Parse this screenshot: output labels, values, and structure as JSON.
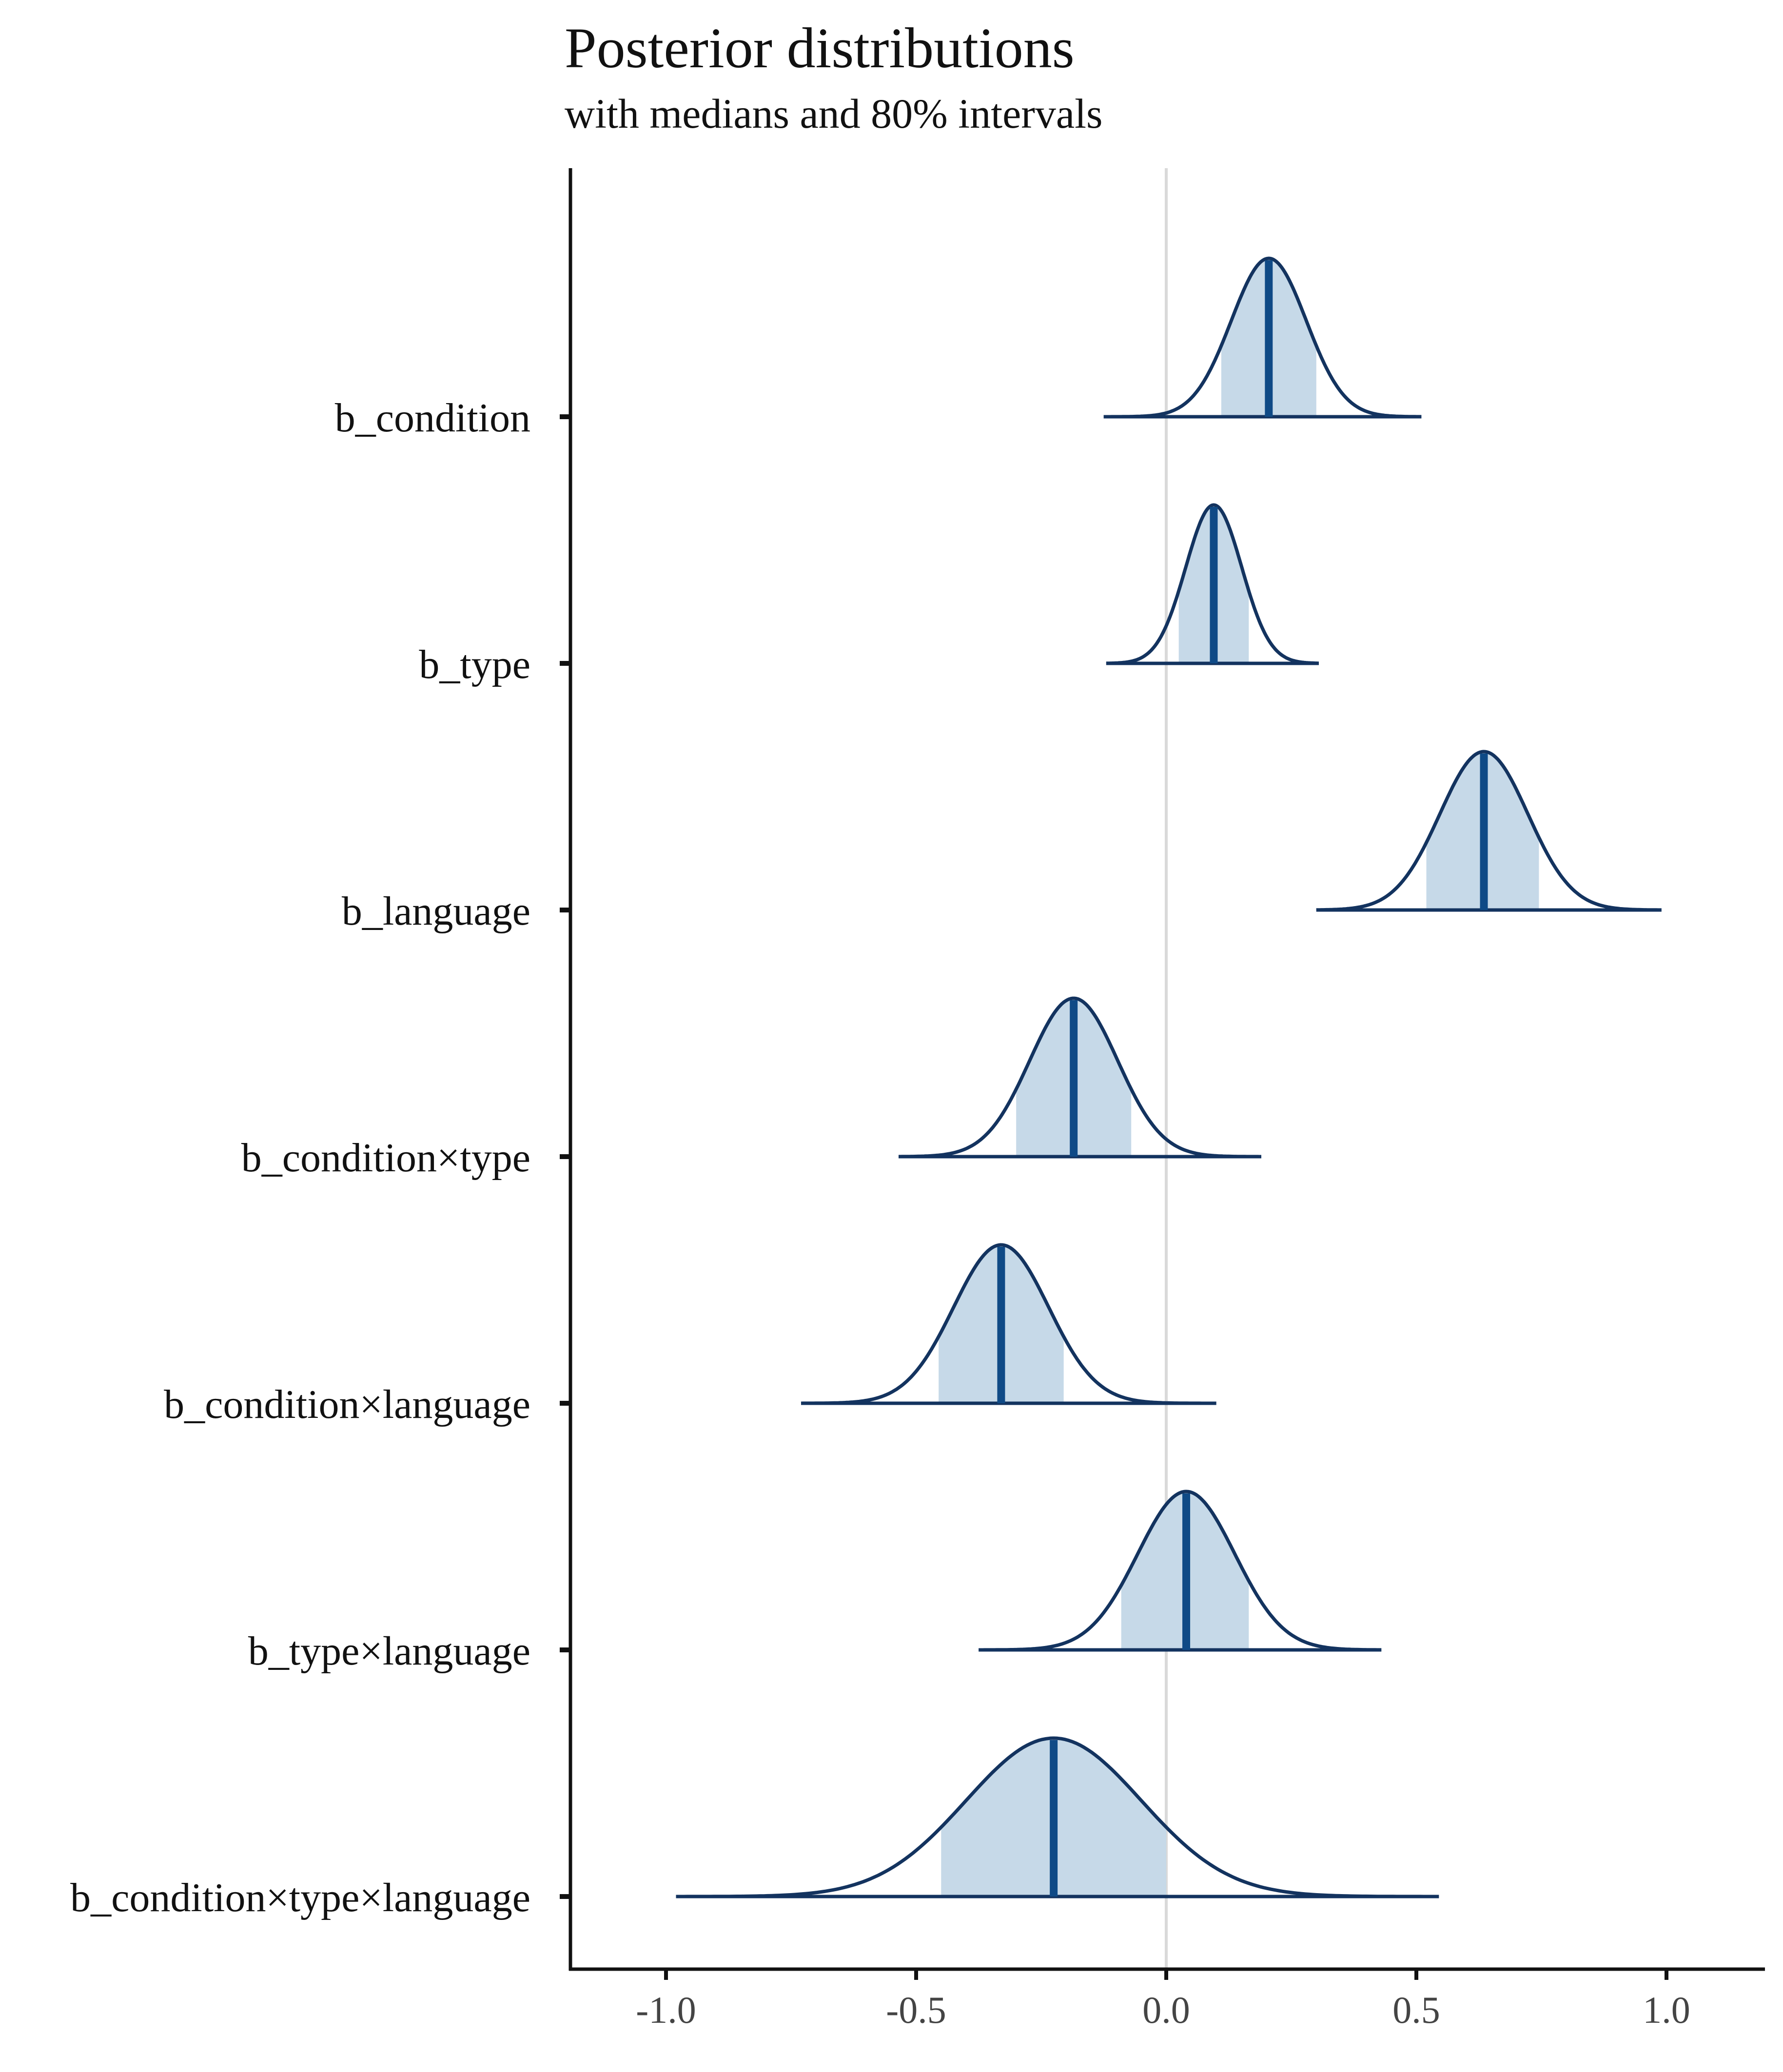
{
  "chart_data": {
    "type": "area",
    "title": "Posterior distributions",
    "subtitle": "with medians and 80% intervals",
    "xlabel": "",
    "ylabel": "",
    "xlim": [
      -1.2,
      1.2
    ],
    "x_ticks": [
      -1.0,
      -0.5,
      0.0,
      0.5,
      1.0
    ],
    "x_tick_labels": [
      "-1.0",
      "-0.5",
      "0.0",
      "0.5",
      "1.0"
    ],
    "reference_line": 0.0,
    "interval_level": "80%",
    "colors": {
      "outline": "#13335f",
      "fill": "#c6d9e8",
      "median": "#0f4a86",
      "reference": "#d9d9d9",
      "axis": "#111111"
    },
    "series": [
      {
        "name": "b_condition",
        "median": 0.205,
        "sd": 0.075,
        "interval80": [
          0.11,
          0.3
        ],
        "range": [
          -0.125,
          0.51
        ]
      },
      {
        "name": "b_type",
        "median": 0.095,
        "sd": 0.056,
        "interval80": [
          0.025,
          0.165
        ],
        "range": [
          -0.12,
          0.305
        ]
      },
      {
        "name": "b_language",
        "median": 0.635,
        "sd": 0.088,
        "interval80": [
          0.52,
          0.745
        ],
        "range": [
          0.3,
          0.99
        ]
      },
      {
        "name": "b_condition×type",
        "median": -0.185,
        "sd": 0.088,
        "interval80": [
          -0.3,
          -0.07
        ],
        "range": [
          -0.535,
          0.19
        ]
      },
      {
        "name": "b_condition×language",
        "median": -0.33,
        "sd": 0.095,
        "interval80": [
          -0.455,
          -0.205
        ],
        "range": [
          -0.73,
          0.1
        ]
      },
      {
        "name": "b_type×language",
        "median": 0.04,
        "sd": 0.097,
        "interval80": [
          -0.09,
          0.165
        ],
        "range": [
          -0.375,
          0.43
        ]
      },
      {
        "name": "b_condition×type×language",
        "median": -0.225,
        "sd": 0.175,
        "interval80": [
          -0.45,
          0.0
        ],
        "range": [
          -0.98,
          0.545
        ]
      }
    ]
  }
}
